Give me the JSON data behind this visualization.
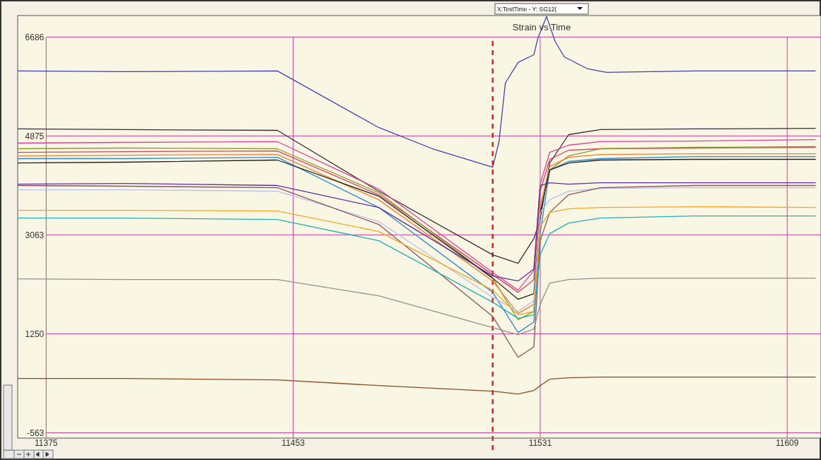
{
  "chart_data": {
    "type": "line",
    "title": "Strain vs Time",
    "annotations": [
      "X:TestTime - Y: SG12("
    ],
    "x": [
      11366,
      11400,
      11448,
      11480,
      11516,
      11524,
      11529,
      11531,
      11534,
      11540,
      11550,
      11580,
      11618
    ],
    "xlim": [
      11366,
      11619
    ],
    "xticks": [
      11375,
      11453,
      11531,
      11609
    ],
    "ylim": [
      -660,
      7080
    ],
    "yticks": [
      -563,
      1250,
      3063,
      4875,
      6686
    ],
    "grid": true,
    "ref_lines": [
      {
        "axis": "x",
        "value": 11516,
        "color": "#e02020",
        "line_style": "dashed"
      }
    ],
    "series": [
      {
        "color": "#4040b0",
        "x": [
          11366,
          11400,
          11448,
          11480,
          11497,
          11516,
          11518,
          11520,
          11524,
          11529,
          11530.3,
          11533,
          11535.7,
          11538.6,
          11546,
          11552,
          11580,
          11618
        ],
        "values": [
          6065,
          6052,
          6065,
          5029,
          4640,
          4303,
          4770,
          5844,
          6220,
          6362,
          6673,
          7062,
          6608,
          6323,
          6103,
          6039,
          6065,
          6065
        ]
      },
      {
        "color": "#3a2a3a",
        "values": [
          5003,
          4990,
          4977,
          3863,
          2697,
          2542,
          2995,
          3345,
          4381,
          4899,
          4990,
          5003,
          5015
        ]
      },
      {
        "color": "#e0409a",
        "values": [
          4744,
          4757,
          4770,
          3902,
          2374,
          2050,
          2413,
          3992,
          4575,
          4705,
          4770,
          4782,
          4808
        ]
      },
      {
        "color": "#d84060",
        "values": [
          4575,
          4588,
          4601,
          3798,
          2335,
          2011,
          2244,
          3863,
          4446,
          4614,
          4640,
          4653,
          4666
        ]
      },
      {
        "color": "#8c9a30",
        "values": [
          4640,
          4653,
          4640,
          3837,
          2270,
          1506,
          1661,
          3474,
          4251,
          4510,
          4640,
          4666,
          4679
        ]
      },
      {
        "color": "#f08030",
        "values": [
          4510,
          4523,
          4536,
          3707,
          2218,
          1623,
          1791,
          3604,
          4316,
          4484,
          4536,
          4549,
          4549
        ]
      },
      {
        "color": "#2e86d0",
        "values": [
          4459,
          4459,
          4484,
          3565,
          2011,
          1273,
          1467,
          3086,
          4251,
          4407,
          4459,
          4497,
          4497
        ]
      },
      {
        "color": "#202020",
        "values": [
          4381,
          4394,
          4433,
          3772,
          2270,
          1882,
          1985,
          3474,
          4251,
          4381,
          4433,
          4446,
          4446
        ]
      },
      {
        "color": "#5a30a0",
        "values": [
          3992,
          4005,
          3967,
          3565,
          2309,
          2218,
          2438,
          3967,
          4018,
          3992,
          4018,
          4018,
          4018
        ]
      },
      {
        "color": "#b8c0e8",
        "values": [
          3889,
          3889,
          3863,
          3306,
          1920,
          1661,
          1856,
          3474,
          3707,
          3863,
          3915,
          3928,
          3928
        ]
      },
      {
        "color": "#8a5060",
        "values": [
          3967,
          3954,
          3928,
          3254,
          1571,
          819,
          1014,
          2956,
          3474,
          3798,
          3928,
          3967,
          3967
        ]
      },
      {
        "color": "#f5a623",
        "values": [
          3513,
          3513,
          3500,
          3125,
          2050,
          1597,
          1661,
          3215,
          3474,
          3539,
          3565,
          3578,
          3565
        ]
      },
      {
        "color": "#20b0b8",
        "values": [
          3371,
          3371,
          3345,
          2956,
          1830,
          1532,
          1597,
          2697,
          3086,
          3280,
          3371,
          3410,
          3410
        ]
      },
      {
        "color": "#909090",
        "values": [
          2257,
          2244,
          2244,
          1946,
          1364,
          1234,
          1338,
          1791,
          2180,
          2244,
          2270,
          2270,
          2270
        ]
      },
      {
        "color": "#8b4a20",
        "values": [
          431,
          431,
          405,
          302,
          198,
          146,
          211,
          302,
          418,
          444,
          457,
          457,
          457
        ]
      }
    ]
  }
}
